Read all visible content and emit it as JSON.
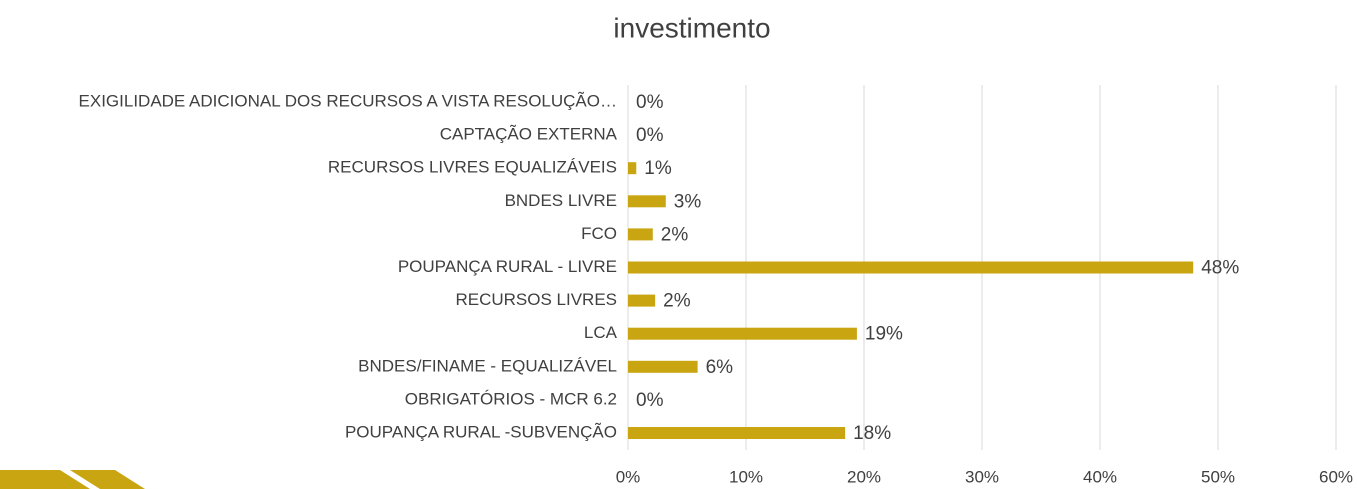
{
  "chart_data": {
    "type": "bar",
    "orientation": "horizontal",
    "title": "investimento",
    "categories": [
      "EXIGILIDADE ADICIONAL DOS RECURSOS A VISTA RESOLUÇÃO…",
      "CAPTAÇÃO EXTERNA",
      "RECURSOS LIVRES EQUALIZÁVEIS",
      "BNDES LIVRE",
      "FCO",
      "POUPANÇA RURAL - LIVRE",
      "RECURSOS LIVRES",
      "LCA",
      "BNDES/FINAME - EQUALIZÁVEL",
      "OBRIGATÓRIOS - MCR 6.2",
      "POUPANÇA RURAL -SUBVENÇÃO"
    ],
    "values": [
      0,
      0,
      0.7,
      3.2,
      2.1,
      47.9,
      2.3,
      19.4,
      5.9,
      0,
      18.4
    ],
    "value_labels": [
      "0%",
      "0%",
      "1%",
      "3%",
      "2%",
      "48%",
      "2%",
      "19%",
      "6%",
      "0%",
      "18%"
    ],
    "color": "#c9a512",
    "xlim": [
      0,
      60
    ],
    "xticks": [
      {
        "value": 0,
        "label": "0%"
      },
      {
        "value": 10,
        "label": "10%"
      },
      {
        "value": 20,
        "label": "20%"
      },
      {
        "value": 30,
        "label": "30%"
      },
      {
        "value": 40,
        "label": "40%"
      },
      {
        "value": 50,
        "label": "50%"
      },
      {
        "value": 60,
        "label": "60%"
      }
    ],
    "grid": true
  }
}
